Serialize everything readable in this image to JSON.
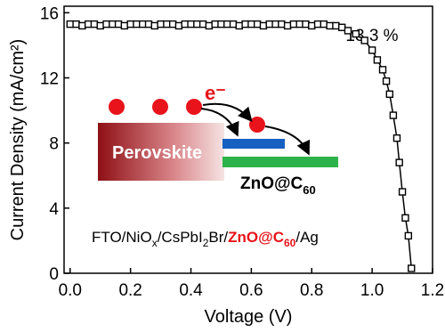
{
  "chart_data": {
    "type": "line",
    "xlabel": "Voltage (V)",
    "ylabel": "Current Density (mA/cm²)",
    "annotation": "13.3 %",
    "x": [
      0,
      0.02,
      0.04,
      0.06,
      0.08,
      0.1,
      0.12,
      0.14,
      0.16,
      0.18,
      0.2,
      0.22,
      0.24,
      0.26,
      0.28,
      0.3,
      0.32,
      0.34,
      0.36,
      0.38,
      0.4,
      0.42,
      0.44,
      0.46,
      0.48,
      0.5,
      0.52,
      0.54,
      0.56,
      0.58,
      0.6,
      0.62,
      0.64,
      0.66,
      0.68,
      0.7,
      0.72,
      0.74,
      0.76,
      0.78,
      0.8,
      0.82,
      0.84,
      0.86,
      0.88,
      0.9,
      0.92,
      0.946,
      0.975,
      1.0,
      1.017,
      1.035,
      1.047,
      1.058,
      1.07,
      1.082,
      1.09,
      1.1,
      1.11,
      1.12,
      1.13
    ],
    "values": [
      15.3,
      15.3,
      15.2,
      15.3,
      15.3,
      15.2,
      15.3,
      15.3,
      15.3,
      15.2,
      15.3,
      15.3,
      15.3,
      15.3,
      15.2,
      15.3,
      15.3,
      15.3,
      15.2,
      15.3,
      15.3,
      15.3,
      15.3,
      15.2,
      15.3,
      15.3,
      15.3,
      15.3,
      15.2,
      15.3,
      15.3,
      15.3,
      15.2,
      15.3,
      15.3,
      15.3,
      15.2,
      15.3,
      15.3,
      15.3,
      15.2,
      15.3,
      15.3,
      15.2,
      15.2,
      15.1,
      14.9,
      14.7,
      14.3,
      13.7,
      13.1,
      12.5,
      11.8,
      11.0,
      9.7,
      8.3,
      6.8,
      5.0,
      3.4,
      2.3,
      0.3
    ],
    "color": "#000000",
    "xlim": [
      -0.02,
      1.2
    ],
    "xticks": [
      {
        "value": 0,
        "label": "0.0"
      },
      0.2,
      0.4,
      0.6,
      0.8,
      {
        "value": 1,
        "label": "1.0"
      },
      1.2
    ],
    "ylim": [
      0,
      16.4
    ],
    "yticks": [
      0,
      4,
      8,
      12,
      16
    ],
    "inset": {
      "electron": "e⁻",
      "perovskite": "Perovskite",
      "etl": [
        "ZnO@C",
        "60"
      ],
      "device": [
        {
          "text": "FTO/NiO",
          "sub": false,
          "color": "#000000"
        },
        {
          "text": "x",
          "sub": true,
          "color": "#000000"
        },
        {
          "text": "/CsPbI",
          "sub": false,
          "color": "#000000"
        },
        {
          "text": "2",
          "sub": true,
          "color": "#000000"
        },
        {
          "text": "Br/",
          "sub": false,
          "color": "#000000"
        },
        {
          "text": "ZnO@C",
          "sub": false,
          "color": "#e8131b"
        },
        {
          "text": "60",
          "sub": true,
          "color": "#e8131b"
        },
        {
          "text": "/Ag",
          "sub": false,
          "color": "#000000"
        }
      ]
    }
  }
}
